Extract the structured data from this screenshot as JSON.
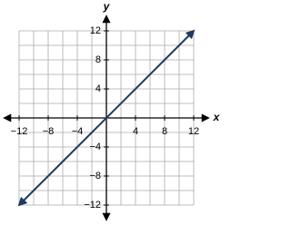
{
  "chart_data": {
    "type": "line",
    "x_label": "x",
    "y_label": "y",
    "x": [
      -12,
      12
    ],
    "series": [
      {
        "color": "#1f3b5c",
        "values": [
          -12,
          12
        ]
      }
    ],
    "xlim": [
      -14,
      14
    ],
    "ylim": [
      -14,
      14
    ],
    "xticks": [
      {
        "value": -12,
        "label": "−12"
      },
      {
        "value": -8,
        "label": "−8"
      },
      {
        "value": -4,
        "label": "−4"
      },
      4,
      8,
      12
    ],
    "yticks": [
      {
        "value": -12,
        "label": "−12"
      },
      {
        "value": -8,
        "label": "−8"
      },
      {
        "value": -4,
        "label": "−4"
      },
      4,
      8,
      12
    ],
    "minor_ticks": [
      -12,
      -10,
      -8,
      -6,
      -4,
      -2,
      0,
      2,
      4,
      6,
      8,
      10,
      12
    ],
    "grid": true
  }
}
